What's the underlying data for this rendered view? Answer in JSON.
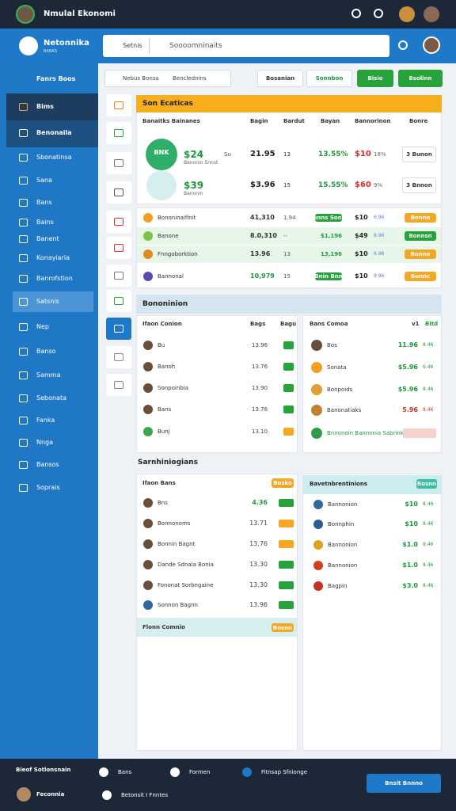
{
  "topbar": {
    "title": "Nmulal Ekonomi"
  },
  "header": {
    "brand": "Netonnika",
    "brand_sub": "BANKS",
    "search_scope": "Setnis",
    "search_placeholder": "Soooomninaits"
  },
  "sidebar": {
    "heading": "Fanrs Boos",
    "items": [
      "Bims",
      "Benonaila",
      "Sbonatinsa",
      "Sana",
      "Bans",
      "Bains",
      "Banent",
      "Konayiaria",
      "Banrofstion",
      "Satsnis",
      "Nep",
      "Banso",
      "Samma",
      "Sebonata",
      "Fanka",
      "Nnga",
      "Bansos",
      "Soprais"
    ]
  },
  "toolbar": {
    "tabs": [
      "Nebus Bonsa",
      "Benclednins"
    ],
    "buttons": [
      "Bosanian",
      "Sonnbon",
      "Bisio",
      "Bsolinn"
    ]
  },
  "top_card": {
    "title": "Son Ecaticas",
    "columns": [
      "Banaitks Bainanes",
      "Bagin",
      "Bardut",
      "Bayan",
      "Bannorinon",
      "Bonre"
    ],
    "rows": [
      {
        "logo": "BNK",
        "cells": [
          "$24",
          "Banonin Snnst",
          "Su",
          "21.95",
          "13",
          "13.55%",
          "$10",
          "18%"
        ],
        "action": "3 Bunon"
      },
      {
        "cells": [
          "$39",
          "Banonin",
          "",
          "$3.96",
          "15",
          "15.55%",
          "$60",
          "9%"
        ],
        "action": "3 Bnnon"
      }
    ]
  },
  "markets": {
    "rows": [
      [
        "Bononinaifinit",
        "41,310",
        "1.94",
        "Bnnns Sonnt",
        "$10",
        "6.96",
        "Bonne"
      ],
      [
        "Banone",
        "8.0,310",
        "--",
        "$1,196",
        "$49",
        "6.96",
        "Bonnsn"
      ],
      [
        "Fnngoborktion",
        "13.96",
        "13",
        "13,196",
        "$10",
        "6.96",
        "Bonne"
      ],
      [
        "Bannonal",
        "10,979",
        "15",
        "Bnin Bnn",
        "$10",
        "9.96",
        "Bonnc"
      ]
    ]
  },
  "section1": {
    "title": "Bononinion"
  },
  "panel_left": {
    "header": [
      "Ifaon Conion",
      "Bags",
      "Bagu"
    ],
    "rows": [
      [
        "Bu",
        "13.96"
      ],
      [
        "Banoh",
        "13.76"
      ],
      [
        "Sonpoinbia",
        "13.90"
      ],
      [
        "Bans",
        "13.76"
      ],
      [
        "Bunj",
        "13.10"
      ]
    ]
  },
  "panel_right": {
    "header": [
      "Bans Comoa",
      "v1",
      "Bitd"
    ],
    "rows": [
      [
        "Bos",
        "11.96",
        "8.46"
      ],
      [
        "Sonata",
        "$5.96",
        "6.46"
      ],
      [
        "Bonpoids",
        "$5.96",
        "8.46"
      ],
      [
        "Banonatiaks",
        "5.96",
        "8.46"
      ],
      [
        "Bnnonoin Bannonia Sabrink",
        "",
        ""
      ]
    ]
  },
  "section2": {
    "title": "Sarnhiniogians"
  },
  "bottom_left": {
    "header": "Ifaon Bans",
    "header_action": "Bosko",
    "rows": [
      [
        "Bns",
        "4.36"
      ],
      [
        "Bonnonoms",
        "13.71"
      ],
      [
        "Bonnin Bagnt",
        "13.76"
      ],
      [
        "Dande Sdnaia Bonia",
        "13.30"
      ],
      [
        "Fononat Sorbngaine",
        "13.30"
      ],
      [
        "Sonnon Bagnn",
        "13.96"
      ]
    ],
    "footer": "Flonn Comnio",
    "footer_action": "Bosnn"
  },
  "bottom_right": {
    "header": "Bavetnbrentinions",
    "header_action": "Bosnn",
    "rows": [
      [
        "Bannonion",
        "$10",
        "8.46"
      ],
      [
        "Bonnphin",
        "$10",
        "8.46"
      ],
      [
        "Bannonion",
        "$1.0",
        "8.46"
      ],
      [
        "Bannonion",
        "$1.0",
        "8.46"
      ],
      [
        "Bagpin",
        "$3.0",
        "8.46"
      ]
    ]
  },
  "footer": {
    "left_title": "Bieof Sotlonsnain",
    "user": "Feconnia",
    "links": [
      "Bans",
      "Formen",
      "Fitnsap Sfnionge",
      "Betonsit I Fnntes"
    ],
    "button": "Bnsit Bnnno"
  }
}
